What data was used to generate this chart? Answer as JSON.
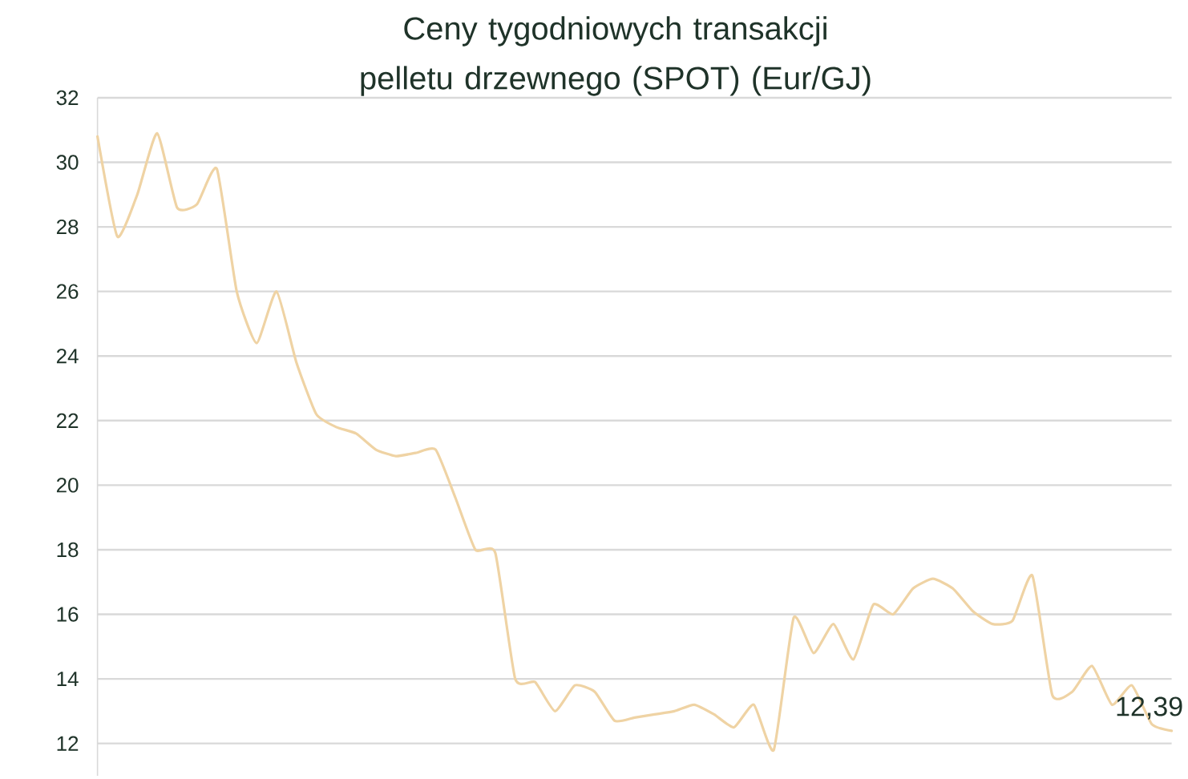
{
  "chart_data": {
    "type": "line",
    "title": "Ceny tygodniowych transakcji pelletu drzewnego (SPOT) (Eur/GJ)",
    "categories": [
      null,
      null,
      null,
      null,
      null,
      null,
      null,
      null,
      null,
      null,
      null,
      null,
      null,
      null,
      null,
      null,
      null,
      null,
      null,
      null,
      null,
      null,
      null,
      null,
      null,
      null,
      null,
      null,
      null,
      null,
      null,
      null,
      null,
      null,
      null,
      null,
      null,
      null,
      null,
      null,
      null,
      null,
      null,
      null,
      null,
      null,
      null,
      null,
      null,
      null,
      null,
      null,
      null,
      null,
      null
    ],
    "values": [
      30.8,
      27.7,
      29.0,
      30.9,
      28.6,
      28.7,
      29.8,
      26.0,
      24.4,
      26.0,
      23.8,
      22.2,
      21.8,
      21.6,
      21.1,
      20.9,
      21.0,
      21.1,
      19.6,
      18.0,
      17.9,
      14.0,
      13.9,
      13.0,
      13.8,
      13.6,
      12.7,
      12.8,
      12.9,
      13.0,
      13.2,
      12.9,
      12.5,
      13.2,
      11.8,
      15.9,
      14.8,
      15.7,
      14.6,
      16.3,
      16.0,
      16.8,
      17.1,
      16.8,
      16.1,
      15.7,
      15.8,
      17.2,
      13.5,
      13.6,
      14.4,
      13.2,
      13.8,
      12.6,
      12.39
    ],
    "value_labels": [
      null,
      null,
      null,
      null,
      null,
      null,
      null,
      null,
      null,
      null,
      null,
      null,
      null,
      null,
      null,
      null,
      null,
      null,
      null,
      null,
      null,
      null,
      null,
      null,
      null,
      null,
      null,
      null,
      null,
      null,
      null,
      null,
      null,
      null,
      null,
      null,
      null,
      null,
      null,
      null,
      null,
      null,
      null,
      null,
      null,
      null,
      null,
      null,
      null,
      null,
      null,
      null,
      null,
      null,
      "12,39"
    ],
    "color": "#efd3a4",
    "ylim": [
      11,
      32
    ],
    "yticks": [
      12,
      14,
      16,
      18,
      20,
      22,
      24,
      26,
      28,
      30,
      32
    ],
    "grid": "y",
    "marker": "none",
    "line_style": "solid",
    "tick_labels": "y"
  }
}
